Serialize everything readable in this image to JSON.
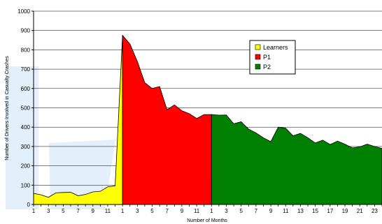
{
  "chart_data": {
    "type": "area",
    "title": "",
    "xlabel": "Number of Months",
    "ylabel": "Number of Drivers Involved in Casualty Crashes",
    "ylim": [
      0,
      1000
    ],
    "yticks": [
      0,
      100,
      200,
      300,
      400,
      500,
      600,
      700,
      800,
      900,
      1000
    ],
    "grid": true,
    "legend_position": "top-right",
    "x_tick_labels": [
      "1",
      "3",
      "5",
      "7",
      "9",
      "11",
      "1",
      "3",
      "5",
      "7",
      "9",
      "11",
      "1",
      "3",
      "5",
      "7",
      "9",
      "11",
      "13",
      "15",
      "17",
      "19",
      "21",
      "23"
    ],
    "series": [
      {
        "name": "Learners",
        "color": "#ffff00",
        "months": [
          1,
          2,
          3,
          4,
          5,
          6,
          7,
          8,
          9,
          10,
          11,
          12
        ],
        "values": [
          57,
          50,
          37,
          60,
          62,
          63,
          45,
          52,
          65,
          68,
          91,
          96
        ]
      },
      {
        "name": "P1",
        "color": "#ff0000",
        "months": [
          1,
          2,
          3,
          4,
          5,
          6,
          7,
          8,
          9,
          10,
          11,
          12
        ],
        "values": [
          875,
          830,
          740,
          630,
          600,
          610,
          490,
          515,
          485,
          470,
          445,
          465
        ]
      },
      {
        "name": "P2",
        "color": "#008000",
        "months": [
          1,
          2,
          3,
          4,
          5,
          6,
          7,
          8,
          9,
          10,
          11,
          12,
          13,
          14,
          15,
          16,
          17,
          18,
          19,
          20,
          21,
          22,
          23,
          24
        ],
        "values": [
          465,
          462,
          463,
          418,
          428,
          390,
          370,
          345,
          325,
          400,
          395,
          355,
          368,
          345,
          318,
          333,
          310,
          328,
          312,
          293,
          298,
          312,
          300,
          290
        ]
      }
    ]
  }
}
